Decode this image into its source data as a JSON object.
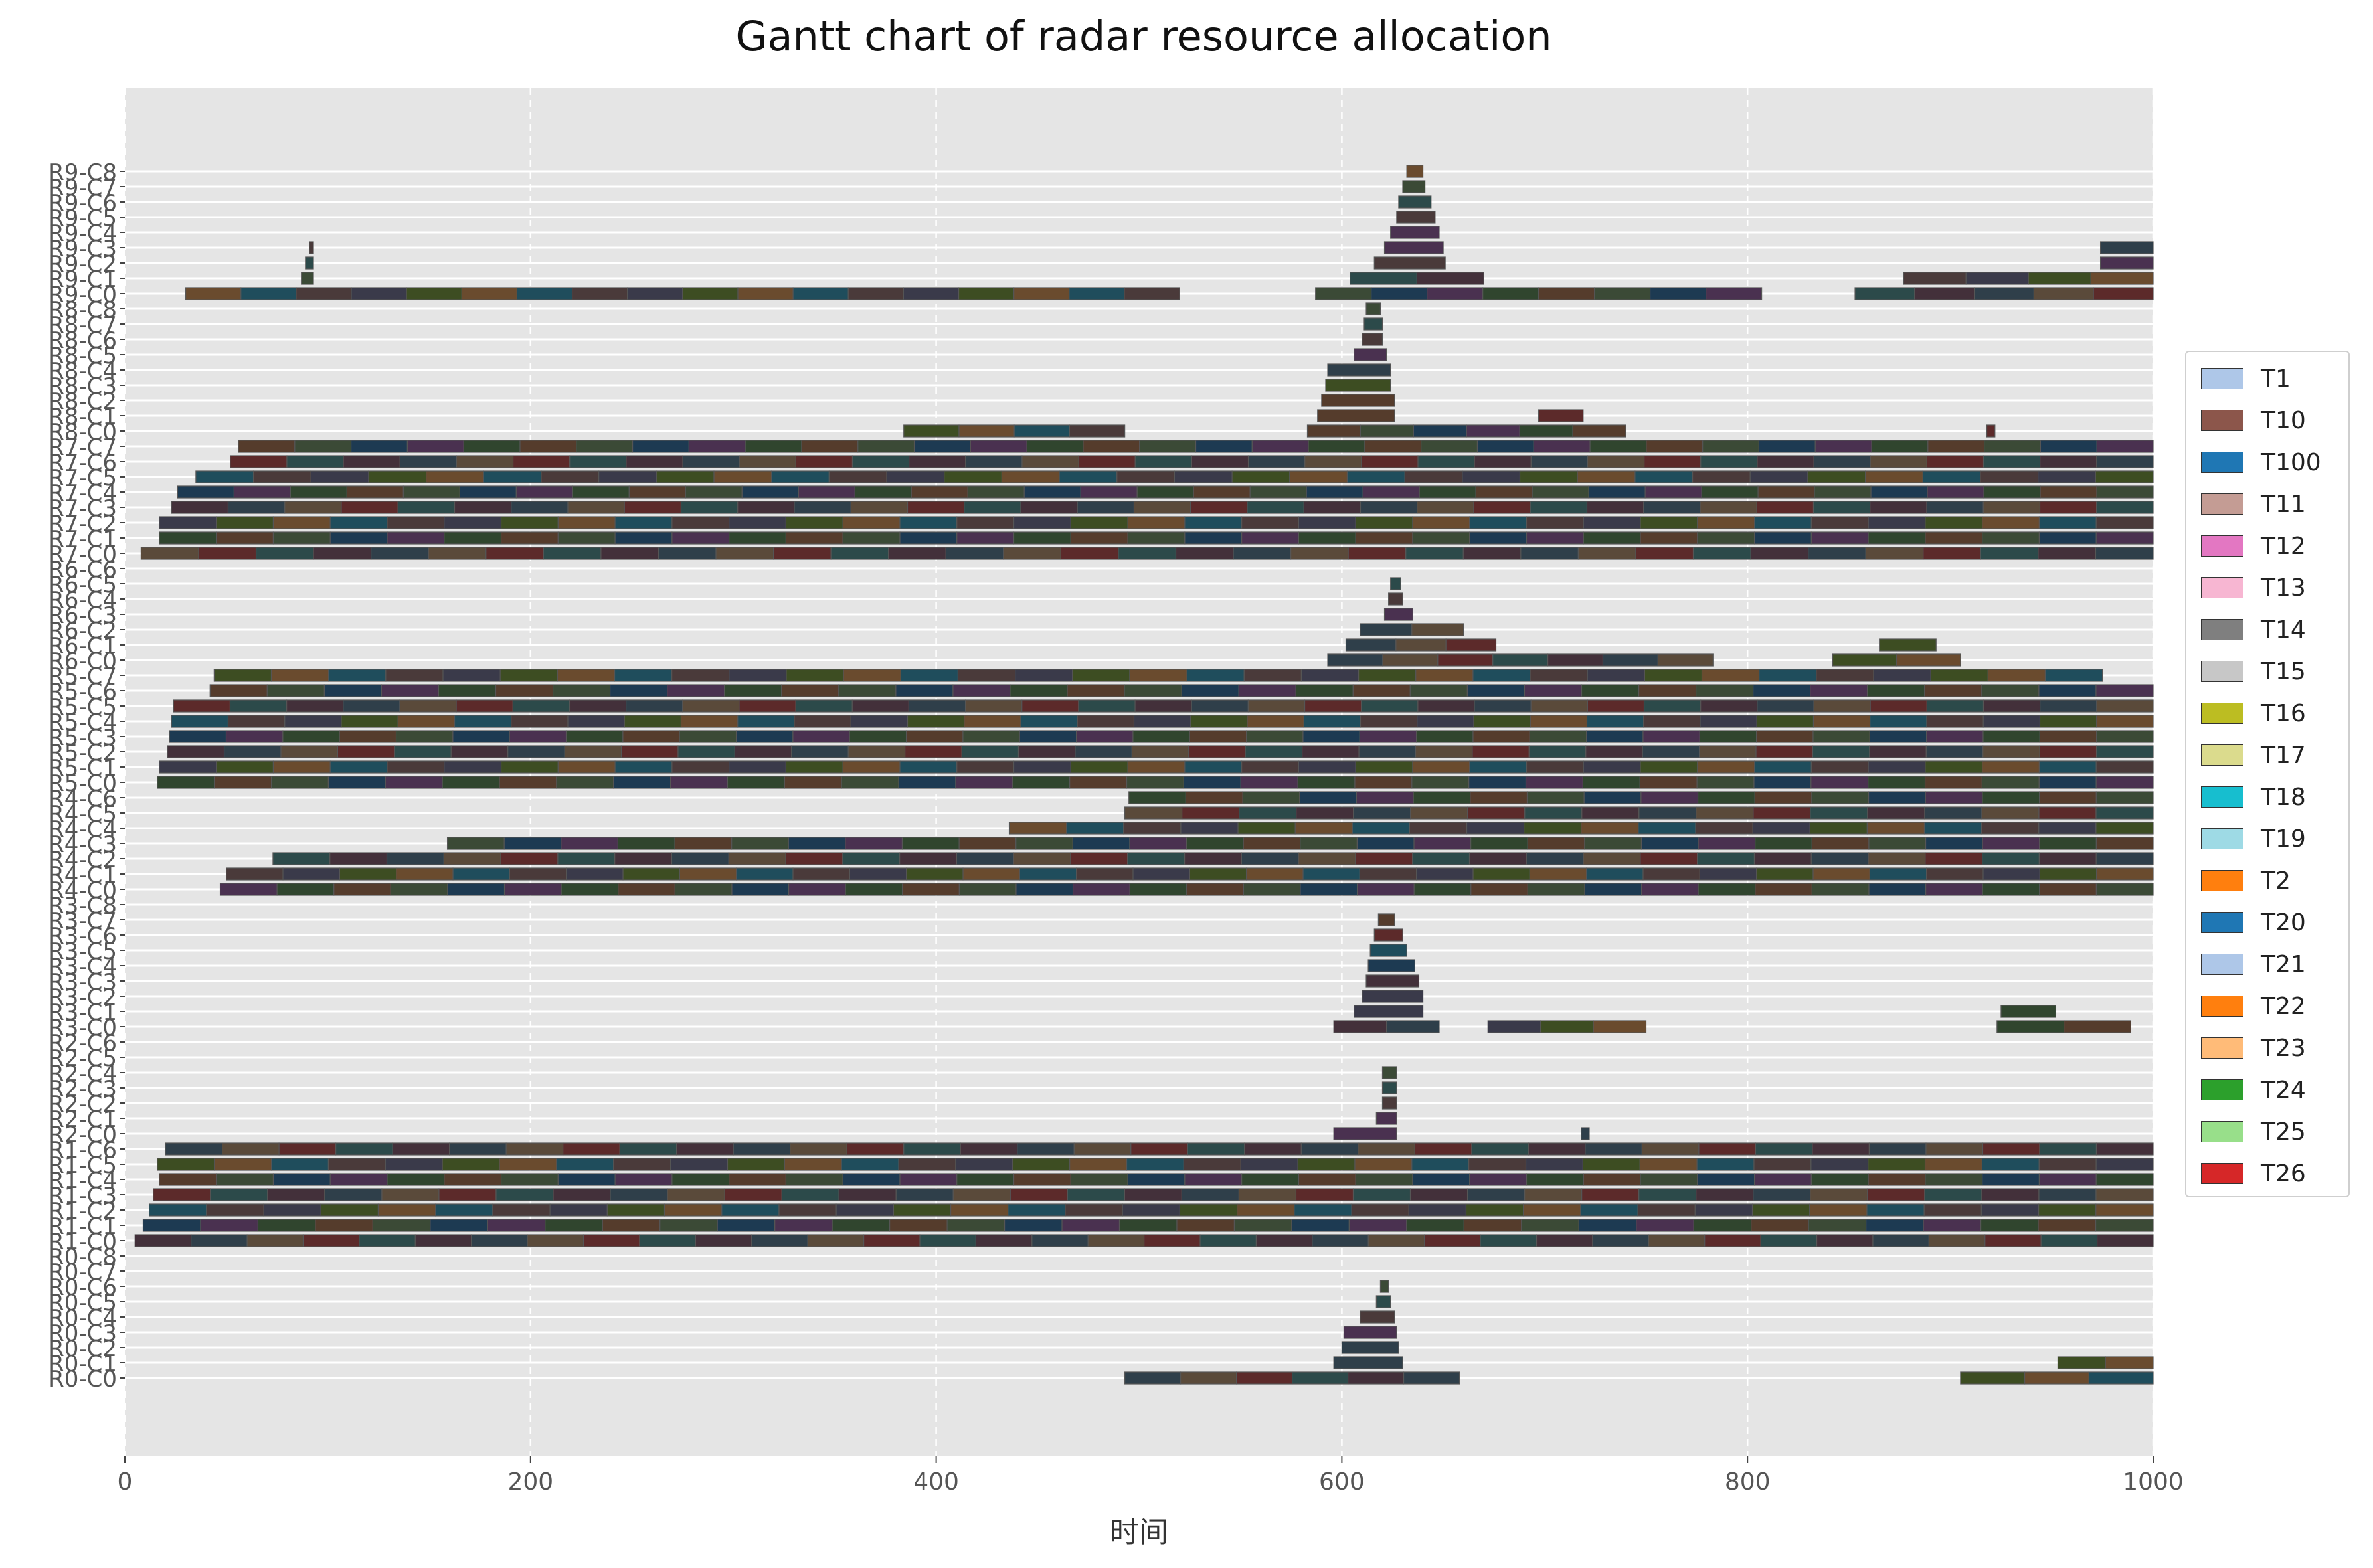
{
  "chart_data": {
    "type": "gantt",
    "title": "Gantt chart of radar resource allocation",
    "xlabel": "时间",
    "ylabel": "",
    "xlim": [
      0,
      1000
    ],
    "xticks": [
      "0",
      "200",
      "400",
      "600",
      "800",
      "1000"
    ],
    "grid": true,
    "legend_position": "right",
    "rows": [
      "R0-C0",
      "R0-C1",
      "R0-C2",
      "R0-C3",
      "R0-C4",
      "R0-C5",
      "R0-C6",
      "R0-C7",
      "R0-C8",
      "R1-C0",
      "R1-C1",
      "R1-C2",
      "R1-C3",
      "R1-C4",
      "R1-C5",
      "R1-C6",
      "R2-C0",
      "R2-C1",
      "R2-C2",
      "R2-C3",
      "R2-C4",
      "R2-C5",
      "R2-C6",
      "R3-C0",
      "R3-C1",
      "R3-C2",
      "R3-C3",
      "R3-C4",
      "R3-C5",
      "R3-C6",
      "R3-C7",
      "R3-C8",
      "R4-C0",
      "R4-C1",
      "R4-C2",
      "R4-C3",
      "R4-C4",
      "R4-C5",
      "R4-C6",
      "R5-C0",
      "R5-C1",
      "R5-C2",
      "R5-C3",
      "R5-C4",
      "R5-C5",
      "R5-C6",
      "R5-C7",
      "R6-C0",
      "R6-C1",
      "R6-C2",
      "R6-C3",
      "R6-C4",
      "R6-C5",
      "R6-C6",
      "R7-C0",
      "R7-C1",
      "R7-C2",
      "R7-C3",
      "R7-C4",
      "R7-C5",
      "R7-C6",
      "R7-C7",
      "R8-C0",
      "R8-C1",
      "R8-C2",
      "R8-C3",
      "R8-C4",
      "R8-C5",
      "R8-C6",
      "R8-C7",
      "R8-C8",
      "R9-C0",
      "R9-C1",
      "R9-C2",
      "R9-C3",
      "R9-C4",
      "R9-C5",
      "R9-C6",
      "R9-C7",
      "R9-C8"
    ],
    "palette": [
      "#2f3f4a",
      "#4a3a3a",
      "#3b4a36",
      "#5a4a3a",
      "#3a3a4a",
      "#1d3a52",
      "#5c2a2a",
      "#3d4d22",
      "#4a3150",
      "#2c4a4a",
      "#6a4b2e",
      "#30452e",
      "#43303a",
      "#1f4d5c",
      "#553c2c"
    ],
    "bars": [
      {
        "row": "R0-C0",
        "start": 493,
        "end": 658,
        "task": "T14"
      },
      {
        "row": "R0-C0",
        "start": 905,
        "end": 1000,
        "task": "T18"
      },
      {
        "row": "R0-C1",
        "start": 596,
        "end": 630,
        "task": "T10"
      },
      {
        "row": "R0-C1",
        "start": 953,
        "end": 1000,
        "task": "T10"
      },
      {
        "row": "R0-C2",
        "start": 600,
        "end": 628,
        "task": "T14"
      },
      {
        "row": "R0-C3",
        "start": 601,
        "end": 627,
        "task": "T15"
      },
      {
        "row": "R0-C4",
        "start": 609,
        "end": 626,
        "task": "T14"
      },
      {
        "row": "R0-C5",
        "start": 617,
        "end": 624,
        "task": "T14"
      },
      {
        "row": "R0-C6",
        "start": 619,
        "end": 623,
        "task": "T14"
      },
      {
        "row": "R1-C0",
        "start": 5,
        "end": 1000,
        "task": "T14"
      },
      {
        "row": "R1-C1",
        "start": 9,
        "end": 1000,
        "task": "T19"
      },
      {
        "row": "R1-C2",
        "start": 12,
        "end": 1000,
        "task": "T24"
      },
      {
        "row": "R1-C3",
        "start": 14,
        "end": 1000,
        "task": "T16"
      },
      {
        "row": "R1-C4",
        "start": 17,
        "end": 1000,
        "task": "T20"
      },
      {
        "row": "R1-C5",
        "start": 16,
        "end": 1000,
        "task": "T24"
      },
      {
        "row": "R1-C6",
        "start": 20,
        "end": 1000,
        "task": "T18"
      },
      {
        "row": "R2-C0",
        "start": 596,
        "end": 627,
        "task": "T10"
      },
      {
        "row": "R2-C0",
        "start": 718,
        "end": 722,
        "task": "T26"
      },
      {
        "row": "R2-C1",
        "start": 617,
        "end": 627,
        "task": "T14"
      },
      {
        "row": "R2-C2",
        "start": 620,
        "end": 627,
        "task": "T10"
      },
      {
        "row": "R2-C3",
        "start": 620,
        "end": 627,
        "task": "T10"
      },
      {
        "row": "R2-C4",
        "start": 620,
        "end": 627,
        "task": "T10"
      },
      {
        "row": "R3-C0",
        "start": 596,
        "end": 648,
        "task": "T14"
      },
      {
        "row": "R3-C0",
        "start": 672,
        "end": 750,
        "task": "T10"
      },
      {
        "row": "R3-C0",
        "start": 923,
        "end": 989,
        "task": "T10"
      },
      {
        "row": "R3-C1",
        "start": 606,
        "end": 640,
        "task": "T14"
      },
      {
        "row": "R3-C1",
        "start": 925,
        "end": 952,
        "task": "T10"
      },
      {
        "row": "R3-C2",
        "start": 610,
        "end": 640,
        "task": "T14"
      },
      {
        "row": "R3-C3",
        "start": 612,
        "end": 638,
        "task": "T14"
      },
      {
        "row": "R3-C4",
        "start": 613,
        "end": 636,
        "task": "T14"
      },
      {
        "row": "R3-C5",
        "start": 614,
        "end": 632,
        "task": "T14"
      },
      {
        "row": "R3-C6",
        "start": 616,
        "end": 630,
        "task": "T14"
      },
      {
        "row": "R3-C7",
        "start": 618,
        "end": 626,
        "task": "T14"
      },
      {
        "row": "R4-C0",
        "start": 47,
        "end": 1000,
        "task": "T24"
      },
      {
        "row": "R4-C1",
        "start": 50,
        "end": 1000,
        "task": "T10"
      },
      {
        "row": "R4-C2",
        "start": 73,
        "end": 1000,
        "task": "T14"
      },
      {
        "row": "R4-C3",
        "start": 159,
        "end": 1000,
        "task": "T10"
      },
      {
        "row": "R4-C4",
        "start": 436,
        "end": 1000,
        "task": "T14"
      },
      {
        "row": "R4-C5",
        "start": 493,
        "end": 1000,
        "task": "T10"
      },
      {
        "row": "R4-C6",
        "start": 495,
        "end": 1000,
        "task": "T14"
      },
      {
        "row": "R4-C7",
        "start": 498,
        "end": 1000,
        "task": "T10"
      },
      {
        "row": "R5-C0",
        "start": 16,
        "end": 1000,
        "task": "T14"
      },
      {
        "row": "R5-C1",
        "start": 17,
        "end": 1000,
        "task": "T10"
      },
      {
        "row": "R5-C2",
        "start": 21,
        "end": 1000,
        "task": "T24"
      },
      {
        "row": "R5-C3",
        "start": 22,
        "end": 1000,
        "task": "T10"
      },
      {
        "row": "R5-C4",
        "start": 23,
        "end": 1000,
        "task": "T16"
      },
      {
        "row": "R5-C5",
        "start": 24,
        "end": 1000,
        "task": "T14"
      },
      {
        "row": "R5-C6",
        "start": 42,
        "end": 1000,
        "task": "T10"
      },
      {
        "row": "R5-C7",
        "start": 44,
        "end": 975,
        "task": "T24"
      },
      {
        "row": "R6-C0",
        "start": 593,
        "end": 783,
        "task": "T14"
      },
      {
        "row": "R6-C0",
        "start": 842,
        "end": 905,
        "task": "T18"
      },
      {
        "row": "R6-C1",
        "start": 602,
        "end": 676,
        "task": "T10"
      },
      {
        "row": "R6-C1",
        "start": 865,
        "end": 893,
        "task": "T18"
      },
      {
        "row": "R6-C2",
        "start": 609,
        "end": 660,
        "task": "T14"
      },
      {
        "row": "R6-C3",
        "start": 621,
        "end": 635,
        "task": "T10"
      },
      {
        "row": "R6-C4",
        "start": 623,
        "end": 630,
        "task": "T14"
      },
      {
        "row": "R6-C5",
        "start": 624,
        "end": 629,
        "task": "T10"
      },
      {
        "row": "R7-C0",
        "start": 8,
        "end": 1000,
        "task": "T12"
      },
      {
        "row": "R7-C1",
        "start": 17,
        "end": 1000,
        "task": "T20"
      },
      {
        "row": "R7-C2",
        "start": 17,
        "end": 1000,
        "task": "T10"
      },
      {
        "row": "R7-C3",
        "start": 23,
        "end": 1000,
        "task": "T14"
      },
      {
        "row": "R7-C4",
        "start": 26,
        "end": 1000,
        "task": "T26"
      },
      {
        "row": "R7-C5",
        "start": 35,
        "end": 1000,
        "task": "T18"
      },
      {
        "row": "R7-C6",
        "start": 52,
        "end": 1000,
        "task": "T14"
      },
      {
        "row": "R7-C7",
        "start": 56,
        "end": 1000,
        "task": "T10"
      },
      {
        "row": "R8-C0",
        "start": 384,
        "end": 493,
        "task": "T14"
      },
      {
        "row": "R8-C0",
        "start": 583,
        "end": 740,
        "task": "T10"
      },
      {
        "row": "R8-C0",
        "start": 918,
        "end": 922,
        "task": "T18"
      },
      {
        "row": "R8-C1",
        "start": 588,
        "end": 626,
        "task": "T14"
      },
      {
        "row": "R8-C1",
        "start": 697,
        "end": 719,
        "task": "T26"
      },
      {
        "row": "R8-C2",
        "start": 590,
        "end": 626,
        "task": "T10"
      },
      {
        "row": "R8-C3",
        "start": 592,
        "end": 624,
        "task": "T10"
      },
      {
        "row": "R8-C4",
        "start": 593,
        "end": 624,
        "task": "T14"
      },
      {
        "row": "R8-C5",
        "start": 606,
        "end": 622,
        "task": "T14"
      },
      {
        "row": "R8-C6",
        "start": 610,
        "end": 620,
        "task": "T10"
      },
      {
        "row": "R8-C7",
        "start": 611,
        "end": 620,
        "task": "T10"
      },
      {
        "row": "R8-C8",
        "start": 612,
        "end": 619,
        "task": "T10"
      },
      {
        "row": "R9-C0",
        "start": 30,
        "end": 520,
        "task": "T10"
      },
      {
        "row": "R9-C0",
        "start": 587,
        "end": 807,
        "task": "T14"
      },
      {
        "row": "R9-C0",
        "start": 853,
        "end": 1000,
        "task": "T16"
      },
      {
        "row": "R9-C1",
        "start": 87,
        "end": 93,
        "task": "T14"
      },
      {
        "row": "R9-C1",
        "start": 604,
        "end": 670,
        "task": "T10"
      },
      {
        "row": "R9-C1",
        "start": 877,
        "end": 1000,
        "task": "T10"
      },
      {
        "row": "R9-C2",
        "start": 89,
        "end": 93,
        "task": "T14"
      },
      {
        "row": "R9-C2",
        "start": 616,
        "end": 651,
        "task": "T14"
      },
      {
        "row": "R9-C2",
        "start": 974,
        "end": 1000,
        "task": "T16"
      },
      {
        "row": "R9-C3",
        "start": 91,
        "end": 93,
        "task": "T14"
      },
      {
        "row": "R9-C3",
        "start": 621,
        "end": 650,
        "task": "T14"
      },
      {
        "row": "R9-C3",
        "start": 974,
        "end": 1000,
        "task": "T10"
      },
      {
        "row": "R9-C4",
        "start": 624,
        "end": 648,
        "task": "T14"
      },
      {
        "row": "R9-C5",
        "start": 627,
        "end": 646,
        "task": "T10"
      },
      {
        "row": "R9-C6",
        "start": 628,
        "end": 644,
        "task": "T14"
      },
      {
        "row": "R9-C7",
        "start": 630,
        "end": 641,
        "task": "T10"
      },
      {
        "row": "R9-C8",
        "start": 632,
        "end": 640,
        "task": "T14"
      }
    ],
    "legend": [
      {
        "label": "T1",
        "color": "#aec7e8"
      },
      {
        "label": "T10",
        "color": "#8c564b"
      },
      {
        "label": "T100",
        "color": "#1f77b4"
      },
      {
        "label": "T11",
        "color": "#c49c94"
      },
      {
        "label": "T12",
        "color": "#e377c2"
      },
      {
        "label": "T13",
        "color": "#f7b6d2"
      },
      {
        "label": "T14",
        "color": "#7f7f7f"
      },
      {
        "label": "T15",
        "color": "#c7c7c7"
      },
      {
        "label": "T16",
        "color": "#bcbd22"
      },
      {
        "label": "T17",
        "color": "#dbdb8d"
      },
      {
        "label": "T18",
        "color": "#17becf"
      },
      {
        "label": "T19",
        "color": "#9edae5"
      },
      {
        "label": "T2",
        "color": "#ff7f0e"
      },
      {
        "label": "T20",
        "color": "#1f77b4"
      },
      {
        "label": "T21",
        "color": "#aec7e8"
      },
      {
        "label": "T22",
        "color": "#ff7f0e"
      },
      {
        "label": "T23",
        "color": "#ffbb78"
      },
      {
        "label": "T24",
        "color": "#2ca02c"
      },
      {
        "label": "T25",
        "color": "#98df8a"
      },
      {
        "label": "T26",
        "color": "#d62728"
      }
    ]
  }
}
